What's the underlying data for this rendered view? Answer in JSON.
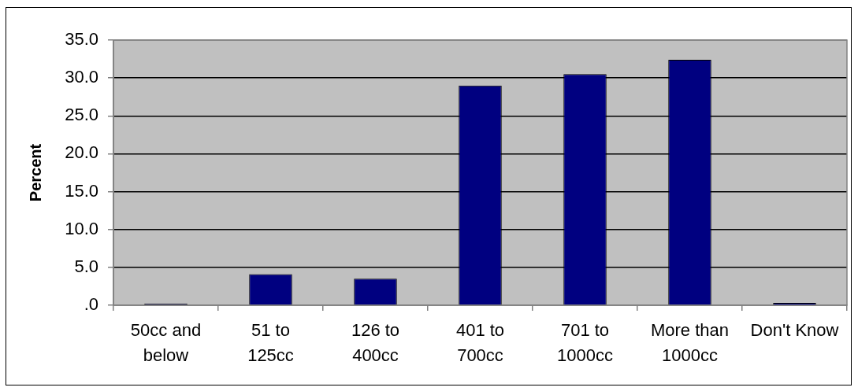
{
  "chart_data": {
    "type": "bar",
    "ylabel": "Percent",
    "categories": [
      "50cc and below",
      "51 to 125cc",
      "126 to 400cc",
      "401 to 700cc",
      "701 to 1000cc",
      "More than 1000cc",
      "Don't Know"
    ],
    "values": [
      0.2,
      4.1,
      3.5,
      29.0,
      30.5,
      32.4,
      0.3
    ],
    "color": "#000080",
    "ylim": [
      0,
      35
    ],
    "yticks": [
      {
        "value": 0,
        "label": ".0"
      },
      {
        "value": 5,
        "label": "5.0"
      },
      {
        "value": 10,
        "label": "10.0"
      },
      {
        "value": 15,
        "label": "15.0"
      },
      {
        "value": 20,
        "label": "20.0"
      },
      {
        "value": 25,
        "label": "25.0"
      },
      {
        "value": 30,
        "label": "30.0"
      },
      {
        "value": 35,
        "label": "35.0"
      }
    ],
    "grid": "y"
  }
}
